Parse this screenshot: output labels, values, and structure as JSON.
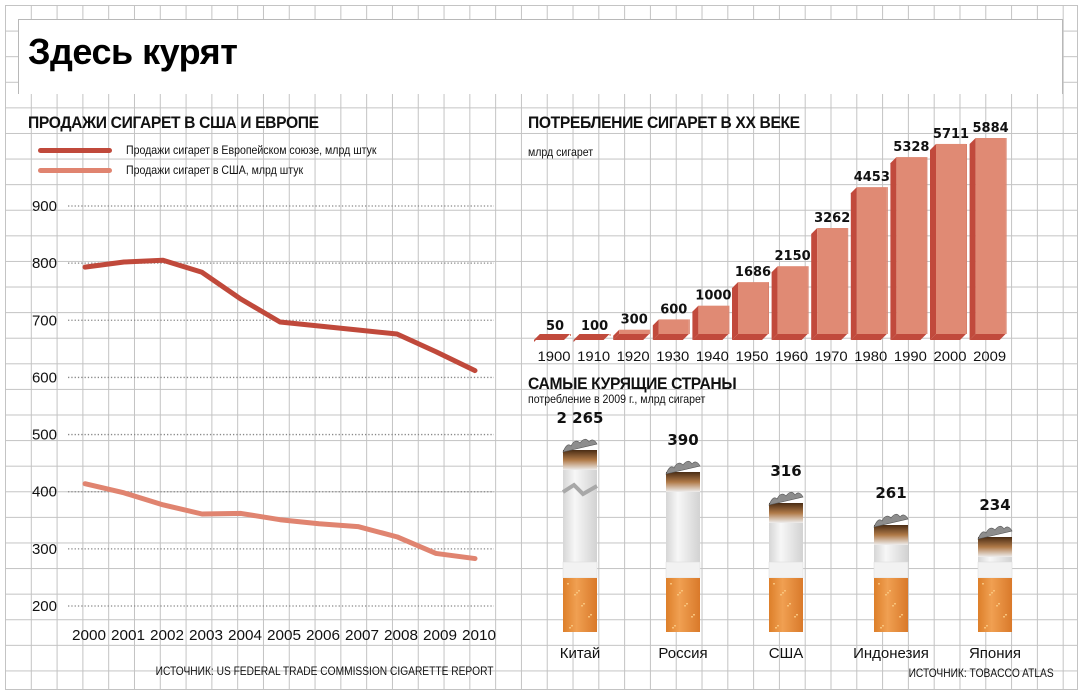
{
  "header": {
    "title": "Здесь курят"
  },
  "chart_data": [
    {
      "type": "line",
      "title": "ПРОДАЖИ СИГАРЕТ В США И ЕВРОПЕ",
      "xlabel": "",
      "ylabel": "",
      "x": [
        "2000",
        "2001",
        "2002",
        "2003",
        "2004",
        "2005",
        "2006",
        "2007",
        "2008",
        "2009",
        "2010"
      ],
      "yticks": [
        900,
        800,
        700,
        600,
        500,
        400,
        300,
        200
      ],
      "ylim": [
        200,
        900
      ],
      "grid": true,
      "legend_position": "top-left",
      "series": [
        {
          "name": "Продажи сигарет в Европейском союзе, млрд штук",
          "color": "#c0493b",
          "values": [
            793,
            802,
            805,
            784,
            737,
            697,
            690,
            683,
            676,
            645,
            612
          ]
        },
        {
          "name": "Продажи сигарет в США, млрд штук",
          "color": "#e08470",
          "values": [
            414,
            398,
            377,
            361,
            362,
            351,
            344,
            339,
            321,
            292,
            283
          ]
        }
      ],
      "source": "ИСТОЧНИК: US FEDERAL TRADE COMMISSION CIGARETTE REPORT"
    },
    {
      "type": "bar",
      "title": "ПОТРЕБЛЕНИЕ СИГАРЕТ В XX ВЕКЕ",
      "subtitle": "млрд сигарет",
      "categories": [
        "1900",
        "1910",
        "1920",
        "1930",
        "1940",
        "1950",
        "1960",
        "1970",
        "1980",
        "1990",
        "2000",
        "2009"
      ],
      "values": [
        50,
        100,
        300,
        600,
        1000,
        1686,
        2150,
        3262,
        4453,
        5328,
        5711,
        5884
      ],
      "labels": [
        "50",
        "100",
        "300",
        "600",
        "1000",
        "1686",
        "2150",
        "3262",
        "4453",
        "5328",
        "5711",
        "5884"
      ],
      "ylim": [
        0,
        5884
      ],
      "colors": {
        "front": "#e08a74",
        "side": "#c14a3c",
        "top": "#e99a86"
      }
    },
    {
      "type": "bar",
      "title": "САМЫЕ КУРЯЩИЕ СТРАНЫ",
      "subtitle": "потребление в 2009 г., млрд сигарет",
      "categories": [
        "Китай",
        "Россия",
        "США",
        "Индонезия",
        "Япония"
      ],
      "values": [
        2265,
        390,
        316,
        261,
        234
      ],
      "labels": [
        "2 265",
        "390",
        "316",
        "261",
        "234"
      ],
      "note": "Китай bar is broken (scale break)",
      "colors": {
        "filter": "#e8913f",
        "paper": "#ececec",
        "ash": "#8a8a8a",
        "burn": "#5a3a20"
      },
      "source": "ИСТОЧНИК: TOBACCO ATLAS"
    }
  ]
}
